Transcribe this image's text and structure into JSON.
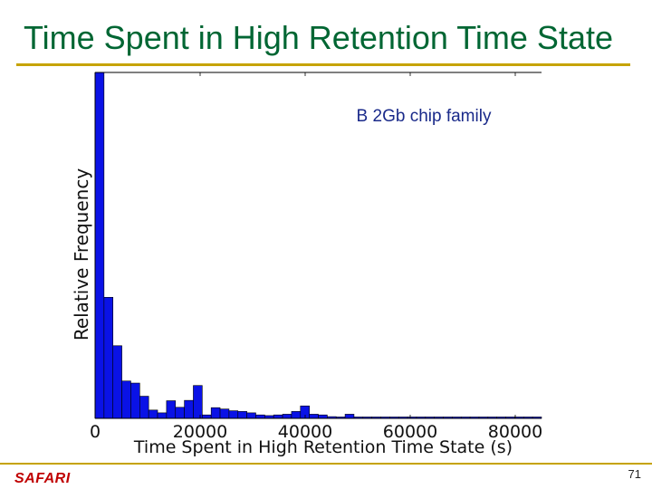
{
  "slide": {
    "title": "Time Spent in High Retention Time State",
    "page_number": "71",
    "footer_logo": "SAFARI"
  },
  "colors": {
    "title": "#006633",
    "rule": "#c6a300",
    "bar": "#0a12e6",
    "logo": "#c00000"
  },
  "chart_data": {
    "type": "bar",
    "title": "",
    "annotation": "B 2Gb chip family",
    "xlabel": "Time Spent in High Retention Time State (s)",
    "ylabel": "Relative Frequency",
    "xlim": [
      0,
      85000
    ],
    "ylim": [
      0,
      1
    ],
    "grid": false,
    "xticks": [
      0,
      20000,
      40000,
      60000,
      80000
    ],
    "xtick_labels": [
      "0",
      "20000",
      "40000",
      "60000",
      "80000"
    ],
    "bin_width": 1700,
    "values": [
      1.0,
      0.35,
      0.21,
      0.108,
      0.102,
      0.064,
      0.024,
      0.016,
      0.051,
      0.032,
      0.052,
      0.095,
      0.01,
      0.031,
      0.027,
      0.022,
      0.02,
      0.016,
      0.01,
      0.008,
      0.01,
      0.012,
      0.02,
      0.036,
      0.012,
      0.01,
      0.005,
      0.004,
      0.012,
      0.004,
      0.004,
      0.004,
      0.004,
      0.004,
      0.004,
      0.004,
      0.004,
      0.004,
      0.004,
      0.004,
      0.004,
      0.004,
      0.004,
      0.004,
      0.004,
      0.004,
      0.004,
      0.004,
      0.004,
      0.004
    ]
  }
}
